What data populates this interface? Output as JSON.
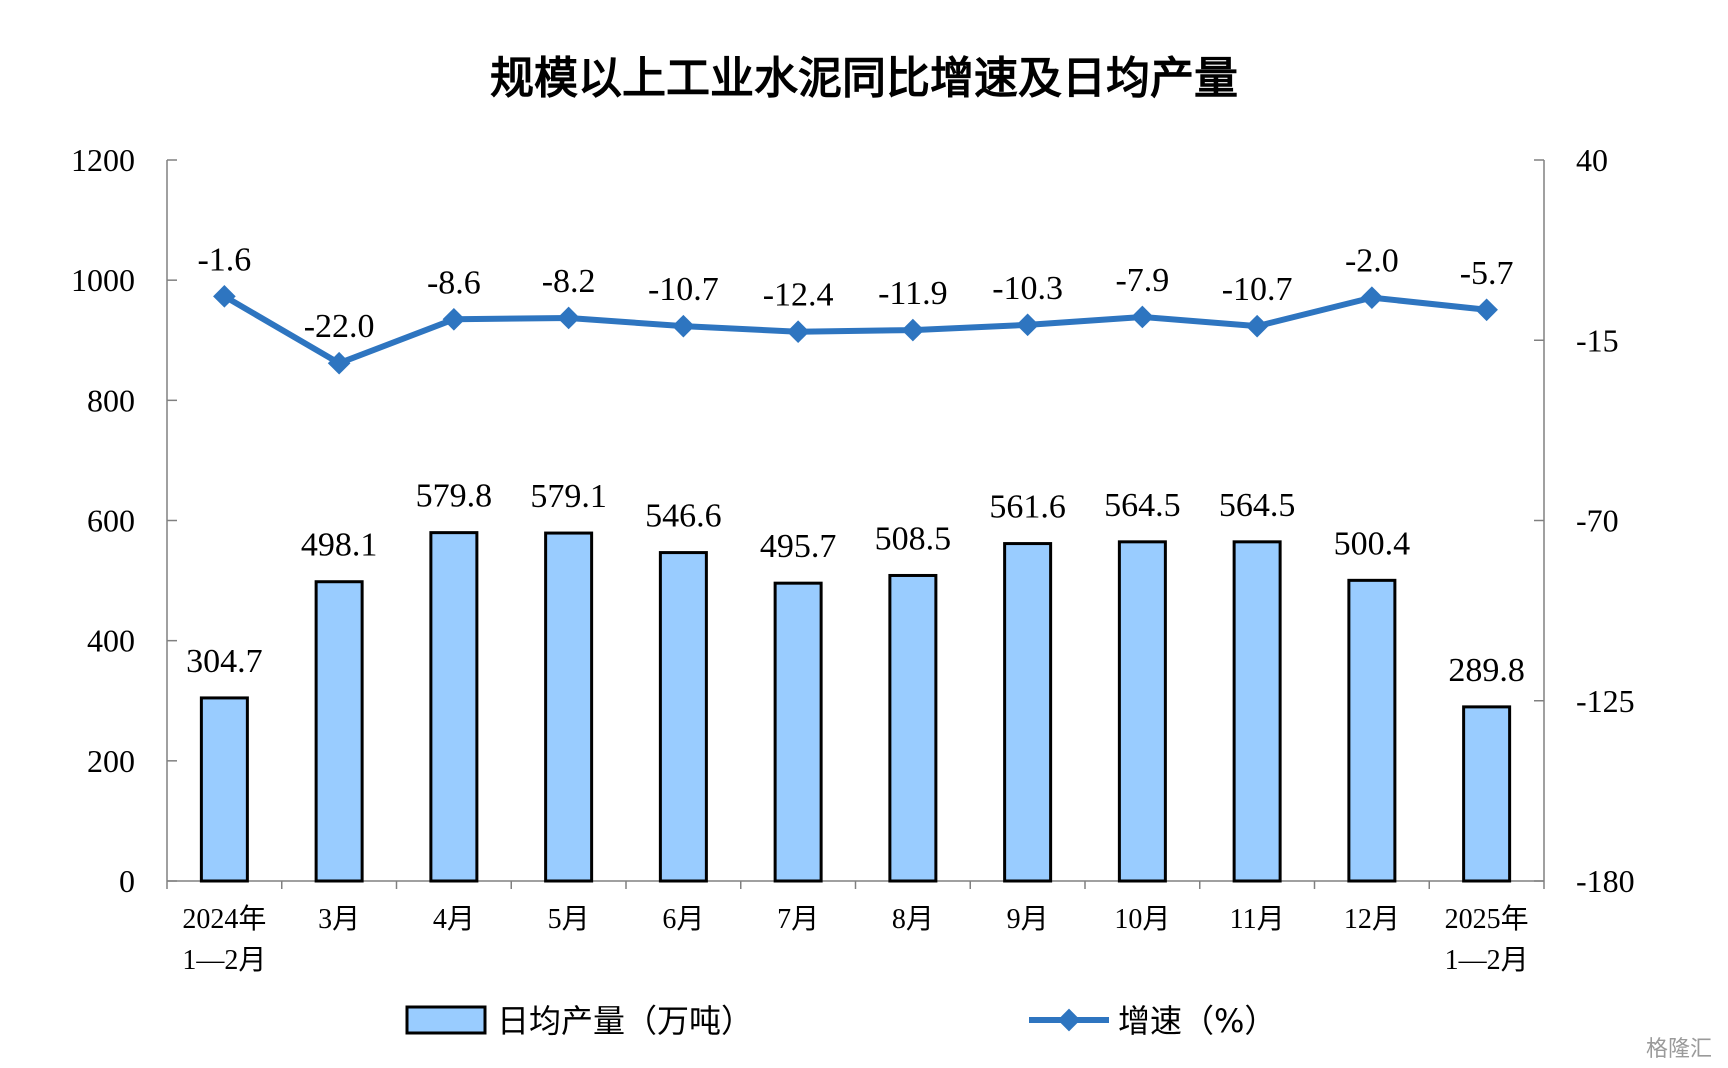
{
  "chart_data": {
    "type": "bar",
    "title": "规模以上工业水泥同比增速及日均产量",
    "categories": [
      [
        "2024年",
        "1—2月"
      ],
      [
        "3月"
      ],
      [
        "4月"
      ],
      [
        "5月"
      ],
      [
        "6月"
      ],
      [
        "7月"
      ],
      [
        "8月"
      ],
      [
        "9月"
      ],
      [
        "10月"
      ],
      [
        "11月"
      ],
      [
        "12月"
      ],
      [
        "2025年",
        "1—2月"
      ]
    ],
    "series": [
      {
        "name": "日均产量（万吨）",
        "type": "bar",
        "axis": "left",
        "color": "#99ccff",
        "values": [
          304.7,
          498.1,
          579.8,
          579.1,
          546.6,
          495.7,
          508.5,
          561.6,
          564.5,
          564.5,
          500.4,
          289.8
        ],
        "labels": [
          "304.7",
          "498.1",
          "579.8",
          "579.1",
          "546.6",
          "495.7",
          "508.5",
          "561.6",
          "564.5",
          "564.5",
          "500.4",
          "289.8"
        ]
      },
      {
        "name": "增速（%）",
        "type": "line",
        "axis": "right",
        "color": "#2e75c0",
        "values": [
          -1.6,
          -22.0,
          -8.6,
          -8.2,
          -10.7,
          -12.4,
          -11.9,
          -10.3,
          -7.9,
          -10.7,
          -2.0,
          -5.7
        ],
        "labels": [
          "-1.6",
          "-22.0",
          "-8.6",
          "-8.2",
          "-10.7",
          "-12.4",
          "-11.9",
          "-10.3",
          "-7.9",
          "-10.7",
          "-2.0",
          "-5.7"
        ]
      }
    ],
    "y_left": {
      "min": 0,
      "max": 1200,
      "ticks": [
        0,
        200,
        400,
        600,
        800,
        1000,
        1200
      ],
      "tick_labels": [
        "0",
        "200",
        "400",
        "600",
        "800",
        "1000",
        "1200"
      ]
    },
    "y_right": {
      "min": -180,
      "max": 40,
      "ticks": [
        -180,
        -125,
        -70,
        -15,
        40
      ],
      "tick_labels": [
        "-180",
        "-125",
        "-70",
        "-15",
        "40"
      ]
    },
    "legend_position": "bottom",
    "grid": false
  },
  "watermark": "格隆汇"
}
